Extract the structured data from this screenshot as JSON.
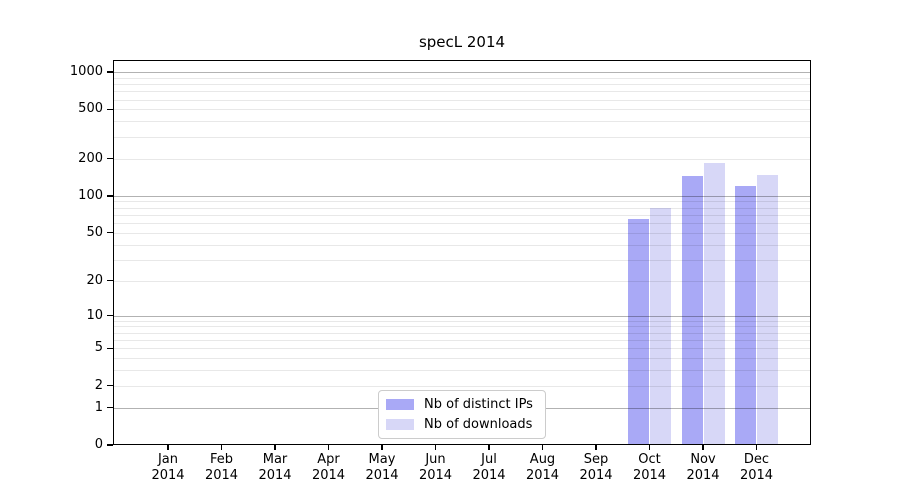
{
  "chart_data": {
    "type": "bar",
    "title": "specL 2014",
    "categories": [
      "Jan",
      "Feb",
      "Mar",
      "Apr",
      "May",
      "Jun",
      "Jul",
      "Aug",
      "Sep",
      "Oct",
      "Nov",
      "Dec"
    ],
    "x_axis": {
      "year_sublabel": "2014"
    },
    "series": [
      {
        "name": "Nb of distinct IPs",
        "color": "#a9a9f6",
        "values": [
          0,
          0,
          0,
          0,
          0,
          0,
          0,
          0,
          0,
          65,
          145,
          120
        ]
      },
      {
        "name": "Nb of downloads",
        "color": "#d7d7f7",
        "values": [
          0,
          0,
          0,
          0,
          0,
          0,
          0,
          0,
          0,
          80,
          183,
          147
        ]
      }
    ],
    "y_axis": {
      "scale": "log1p",
      "min": 0,
      "max": 1250,
      "ticks": [
        1000,
        500,
        200,
        100,
        50,
        20,
        10,
        5,
        2,
        1,
        0
      ],
      "major_gridlines": [
        1,
        10,
        100,
        1000
      ]
    },
    "legend": {
      "position": "lower-center",
      "entries": [
        "Nb of distinct IPs",
        "Nb of downloads"
      ]
    },
    "grid": true
  },
  "colors": {
    "background": "#ffffff",
    "axis": "#000000",
    "major_grid": "rgba(0,0,0,0.30)",
    "minor_grid": "rgba(0,0,0,0.09)",
    "legend_border": "#cccccc",
    "text": "#000000"
  }
}
